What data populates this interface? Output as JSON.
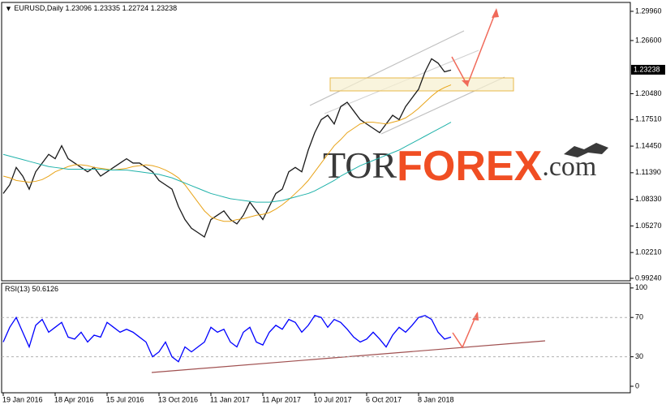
{
  "chart_data": [
    {
      "type": "line",
      "title": "EURUSD,Daily",
      "ohlc": [
        1.23096,
        1.23335,
        1.22724,
        1.23238
      ],
      "categories": [
        "19 Jan 2016",
        null,
        null,
        null,
        null,
        null,
        null,
        null,
        "18 Apr 2016",
        null,
        null,
        null,
        null,
        null,
        null,
        null,
        "15 Jul 2016",
        null,
        null,
        null,
        null,
        null,
        null,
        null,
        "13 Oct 2016",
        null,
        null,
        null,
        null,
        null,
        null,
        null,
        "11 Jan 2017",
        null,
        null,
        null,
        null,
        null,
        null,
        null,
        "11 Apr 2017",
        null,
        null,
        null,
        null,
        null,
        null,
        null,
        "10 Jul 2017",
        null,
        null,
        null,
        null,
        null,
        null,
        null,
        "6 Oct 2017",
        null,
        null,
        null,
        null,
        null,
        null,
        null,
        "8 Jan 2018",
        null,
        null,
        null,
        null,
        null
      ],
      "series": [
        {
          "color": "#1a1a1a",
          "values": [
            1.09,
            1.1,
            1.12,
            1.11,
            1.095,
            1.115,
            1.125,
            1.135,
            1.13,
            1.145,
            1.13,
            1.125,
            1.12,
            1.115,
            1.12,
            1.11,
            1.115,
            1.12,
            1.125,
            1.13,
            1.125,
            1.125,
            1.12,
            1.115,
            1.105,
            1.1,
            1.095,
            1.075,
            1.06,
            1.05,
            1.045,
            1.04,
            1.06,
            1.065,
            1.07,
            1.06,
            1.055,
            1.065,
            1.08,
            1.07,
            1.06,
            1.075,
            1.09,
            1.095,
            1.115,
            1.12,
            1.115,
            1.14,
            1.16,
            1.175,
            1.18,
            1.17,
            1.19,
            1.195,
            1.185,
            1.175,
            1.17,
            1.165,
            1.16,
            1.17,
            1.18,
            1.175,
            1.19,
            1.2,
            1.21,
            1.23,
            1.245,
            1.24,
            1.23,
            1.232
          ]
        },
        {
          "color": "#e8a317",
          "values": [
            1.11,
            1.108,
            1.105,
            1.104,
            1.103,
            1.104,
            1.106,
            1.11,
            1.115,
            1.118,
            1.121,
            1.123,
            1.123,
            1.122,
            1.12,
            1.119,
            1.118,
            1.117,
            1.118,
            1.119,
            1.121,
            1.122,
            1.123,
            1.122,
            1.12,
            1.117,
            1.113,
            1.108,
            1.1,
            1.09,
            1.08,
            1.07,
            1.063,
            1.06,
            1.058,
            1.058,
            1.06,
            1.061,
            1.063,
            1.065,
            1.066,
            1.068,
            1.072,
            1.077,
            1.083,
            1.09,
            1.097,
            1.105,
            1.115,
            1.125,
            1.135,
            1.145,
            1.152,
            1.16,
            1.165,
            1.17,
            1.172,
            1.172,
            1.171,
            1.17,
            1.172,
            1.174,
            1.177,
            1.182,
            1.188,
            1.195,
            1.202,
            1.208,
            1.212,
            1.215
          ]
        },
        {
          "color": "#20b2aa",
          "values": [
            1.135,
            1.133,
            1.131,
            1.129,
            1.127,
            1.125,
            1.123,
            1.121,
            1.12,
            1.119,
            1.118,
            1.118,
            1.118,
            1.118,
            1.118,
            1.118,
            1.117,
            1.117,
            1.117,
            1.117,
            1.116,
            1.115,
            1.114,
            1.113,
            1.112,
            1.11,
            1.108,
            1.105,
            1.102,
            1.099,
            1.096,
            1.093,
            1.09,
            1.088,
            1.086,
            1.084,
            1.083,
            1.082,
            1.081,
            1.08,
            1.08,
            1.08,
            1.081,
            1.082,
            1.084,
            1.086,
            1.088,
            1.09,
            1.093,
            1.097,
            1.101,
            1.105,
            1.11,
            1.114,
            1.118,
            1.122,
            1.125,
            1.128,
            1.131,
            1.134,
            1.137,
            1.14,
            1.144,
            1.148,
            1.152,
            1.156,
            1.16,
            1.164,
            1.168,
            1.172
          ]
        }
      ],
      "ylim": [
        0.9905,
        1.3089
      ],
      "yticks": [
        {
          "value": 1.2996,
          "label": "1.29960"
        },
        {
          "value": 1.266,
          "label": "1.26600"
        },
        {
          "value": 1.2048,
          "label": "1.20480"
        },
        {
          "value": 1.1751,
          "label": "1.17510"
        },
        {
          "value": 1.1445,
          "label": "1.14450"
        },
        {
          "value": 1.1139,
          "label": "1.11390"
        },
        {
          "value": 1.0833,
          "label": "1.08330"
        },
        {
          "value": 1.0527,
          "label": "1.05270"
        },
        {
          "value": 1.0221,
          "label": "1.02210"
        },
        {
          "value": 0.9924,
          "label": "0.99240"
        }
      ]
    },
    {
      "type": "line",
      "title": "RSI(13)",
      "current": 50.6126,
      "series": [
        {
          "color": "#0000ff",
          "values": [
            45,
            60,
            70,
            55,
            40,
            62,
            68,
            55,
            60,
            65,
            50,
            48,
            55,
            45,
            52,
            50,
            65,
            60,
            55,
            58,
            55,
            50,
            45,
            30,
            35,
            45,
            30,
            25,
            40,
            35,
            40,
            45,
            60,
            55,
            58,
            45,
            40,
            55,
            60,
            45,
            42,
            55,
            62,
            58,
            68,
            65,
            55,
            62,
            72,
            70,
            60,
            68,
            65,
            58,
            50,
            45,
            48,
            55,
            48,
            40,
            52,
            60,
            55,
            62,
            70,
            72,
            68,
            55,
            48,
            50
          ]
        }
      ],
      "ylim": [
        -6.6,
        104
      ],
      "yticks": [
        100,
        70,
        30,
        0
      ],
      "grid_dashed": [
        70,
        30
      ]
    }
  ],
  "watermark": {
    "part1": "TOR",
    "part2": "FOREX",
    "part3": ".com"
  }
}
